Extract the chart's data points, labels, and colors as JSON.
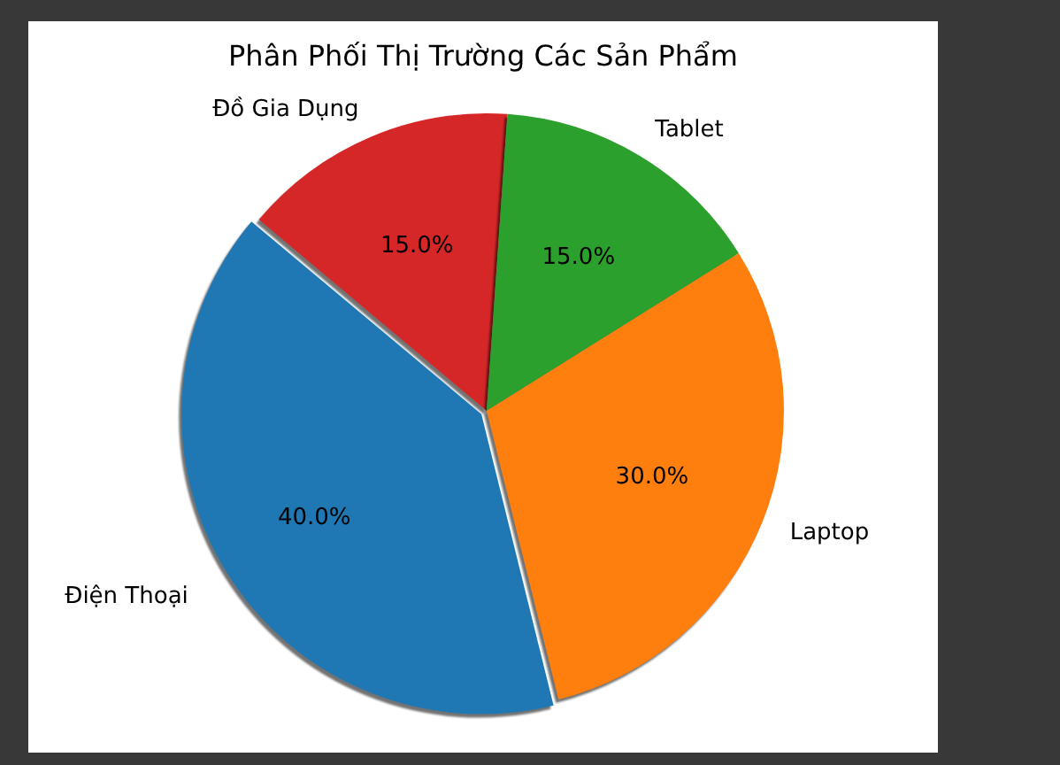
{
  "chart_data": {
    "type": "pie",
    "title": "Phân Phối Thị Trường Các Sản Phẩm",
    "categories": [
      "Điện Thoại",
      "Laptop",
      "Tablet",
      "Đồ Gia Dụng"
    ],
    "values": [
      40,
      30,
      15,
      15
    ],
    "colors": [
      "#1f77b4",
      "#ff7f0e",
      "#2ca02c",
      "#d62728"
    ],
    "value_labels": [
      "40.0%",
      "30.0%",
      "15.0%",
      "15.0%"
    ]
  }
}
